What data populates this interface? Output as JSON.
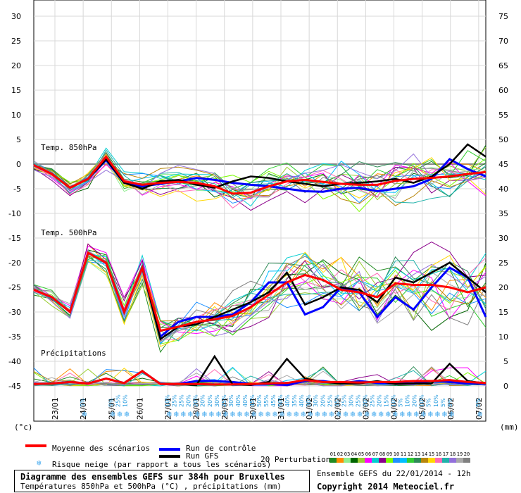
{
  "title": {
    "line1": "Diagramme des ensembles GEFS sur 384h pour Bruxelles",
    "line2": "Températures 850hPa et 500hPa (°C) , précipitations (mm)"
  },
  "run_info": "Ensemble GEFS du 22/01/2014 - 12h",
  "copyright": "Copyright 2014 Meteociel.fr",
  "units_left": "(°c)",
  "units_right": "(mm)",
  "legend": {
    "mean": "Moyenne des scénarios",
    "control": "Run de contrôle",
    "gfs": "Run GFS",
    "snow": "Risque neige (par rapport a tous les scénarios)",
    "perturbations": "20 Perturbations",
    "pert_numbers": [
      "01",
      "02",
      "03",
      "04",
      "05",
      "06",
      "07",
      "08",
      "09",
      "10",
      "11",
      "12",
      "13",
      "14",
      "15",
      "16",
      "17",
      "18",
      "19",
      "20"
    ],
    "pert_colors": [
      "#228b22",
      "#ff8c00",
      "#90ee90",
      "#006400",
      "#9acd32",
      "#ff00ff",
      "#00ced1",
      "#8b008b",
      "#7cfc00",
      "#1e90ff",
      "#00bfff",
      "#32cd32",
      "#2e8b57",
      "#b8860b",
      "#ffd700",
      "#ff69b4",
      "#20b2aa",
      "#9370db",
      "#a9a9a9",
      "#808080"
    ]
  },
  "colors": {
    "mean": "#ff0000",
    "control": "#0000ff",
    "gfs": "#000000",
    "snow": "#44aaee"
  },
  "chart_data": {
    "type": "line",
    "x_dates": [
      "23/01",
      "24/01",
      "25/01",
      "26/01",
      "27/01",
      "28/01",
      "29/01",
      "30/01",
      "31/01",
      "01/02",
      "02/02",
      "03/02",
      "04/02",
      "05/02",
      "06/02",
      "07/02"
    ],
    "left_axis_ticks": [
      30,
      25,
      20,
      15,
      10,
      5,
      0,
      -5,
      -10,
      -15,
      -20,
      -25,
      -30,
      -35,
      -40,
      -45
    ],
    "right_axis_ticks": [
      75,
      70,
      65,
      60,
      55,
      50,
      45,
      40,
      35,
      30,
      25,
      20,
      15,
      10,
      5,
      0
    ],
    "left_axis_range": [
      -45,
      30
    ],
    "right_axis_range": [
      0,
      75
    ],
    "sections": [
      {
        "label": "Temp. 850hPa",
        "mean": [
          -0.2,
          -2,
          -4.8,
          -3,
          1.5,
          -3.5,
          -4.2,
          -3.8,
          -3.6,
          -3.8,
          -4.5,
          -6,
          -5.8,
          -4.5,
          -3.5,
          -3.2,
          -3.6,
          -4,
          -4.2,
          -4.2,
          -3.4,
          -3,
          -2.8,
          -2.5,
          -2,
          -1.6
        ],
        "control": [
          -0.2,
          -2,
          -4.8,
          -3,
          0.8,
          -3.8,
          -4.5,
          -4,
          -3.5,
          -2.8,
          -3.2,
          -3.8,
          -4.2,
          -4.5,
          -5,
          -5.5,
          -5.6,
          -5,
          -4.8,
          -5.5,
          -5,
          -4.5,
          -3,
          1,
          -1,
          -2.5
        ],
        "gfs": [
          -0.2,
          -2,
          -4.8,
          -3,
          1,
          -3.8,
          -5,
          -3.5,
          -3.2,
          -4.2,
          -4.8,
          -3.5,
          -2.5,
          -2.8,
          -3.5,
          -4,
          -4.5,
          -4,
          -3.8,
          -3.5,
          -3,
          -3.8,
          -2.5,
          0,
          4,
          1.5
        ]
      },
      {
        "label": "Temp. 500hPa",
        "mean": [
          -25.5,
          -27,
          -30,
          -18,
          -20,
          -30,
          -21,
          -33.8,
          -33,
          -32,
          -31.5,
          -30.8,
          -29,
          -26.5,
          -24,
          -22.5,
          -23.5,
          -25.5,
          -26,
          -27,
          -24.2,
          -24.5,
          -24.5,
          -25,
          -26,
          -25
        ],
        "control": [
          -25.5,
          -27,
          -30,
          -18,
          -20,
          -30,
          -21,
          -35,
          -32,
          -31,
          -31,
          -30.5,
          -28,
          -24,
          -24,
          -30.5,
          -29,
          -25,
          -26,
          -31,
          -27,
          -29.5,
          -25,
          -21,
          -23,
          -31
        ],
        "gfs": [
          -25.5,
          -27,
          -30,
          -18,
          -20,
          -30,
          -21,
          -35.5,
          -33,
          -32.5,
          -31,
          -29.5,
          -28,
          -26,
          -22,
          -28.5,
          -27,
          -25,
          -25.5,
          -28,
          -23,
          -24,
          -22,
          -20,
          -23,
          -26
        ]
      },
      {
        "label": "Précipitations",
        "mean": [
          0.4,
          0.5,
          0.8,
          0.5,
          1.5,
          0.6,
          3,
          0.4,
          0.4,
          0.4,
          0.3,
          0.3,
          0.4,
          0.5,
          0.6,
          1.2,
          0.8,
          0.8,
          0.7,
          0.8,
          0.8,
          1,
          1,
          1.2,
          0.8,
          0.6
        ],
        "control": [
          0.4,
          0.5,
          0.8,
          0.5,
          1.5,
          0.6,
          3,
          0.4,
          0.4,
          1,
          1,
          0.8,
          0.4,
          0.4,
          0.2,
          1,
          1,
          0.5,
          1,
          0.6,
          0.5,
          0.5,
          1,
          0.8,
          0.5,
          0.5
        ],
        "gfs": [
          0.4,
          0.5,
          0.8,
          0.5,
          1.5,
          0.6,
          3,
          0.4,
          0.4,
          0.2,
          6,
          0.3,
          0.2,
          0.8,
          5.5,
          1.5,
          0.8,
          0.5,
          0.5,
          1,
          0.4,
          0.5,
          0.5,
          4.5,
          1,
          0.5
        ]
      }
    ],
    "snow_risk": [
      {
        "date_index": 1.5,
        "pct": "5%"
      },
      {
        "date_index": 2.5,
        "pct": "5%"
      },
      {
        "date_index": 2.75,
        "pct": "25%"
      },
      {
        "date_index": 3.0,
        "pct": "10%"
      },
      {
        "date_index": 4.5,
        "pct": "10%"
      },
      {
        "date_index": 4.75,
        "pct": "25%"
      },
      {
        "date_index": 5.0,
        "pct": "25%"
      },
      {
        "date_index": 5.25,
        "pct": "20%"
      },
      {
        "date_index": 5.5,
        "pct": "20%"
      },
      {
        "date_index": 5.75,
        "pct": "20%"
      },
      {
        "date_index": 6.0,
        "pct": "20%"
      },
      {
        "date_index": 6.25,
        "pct": "30%"
      },
      {
        "date_index": 6.5,
        "pct": "25%"
      },
      {
        "date_index": 6.75,
        "pct": "30%"
      },
      {
        "date_index": 7.0,
        "pct": "40%"
      },
      {
        "date_index": 7.25,
        "pct": "40%"
      },
      {
        "date_index": 7.5,
        "pct": "45%"
      },
      {
        "date_index": 7.75,
        "pct": "50%"
      },
      {
        "date_index": 8.0,
        "pct": "55%"
      },
      {
        "date_index": 8.25,
        "pct": "45%"
      },
      {
        "date_index": 8.5,
        "pct": "50%"
      },
      {
        "date_index": 8.75,
        "pct": "40%"
      },
      {
        "date_index": 9.0,
        "pct": "35%"
      },
      {
        "date_index": 9.25,
        "pct": "40%"
      },
      {
        "date_index": 9.5,
        "pct": "30%"
      },
      {
        "date_index": 9.75,
        "pct": "30%"
      },
      {
        "date_index": 10.0,
        "pct": "20%"
      },
      {
        "date_index": 10.25,
        "pct": "25%"
      },
      {
        "date_index": 10.5,
        "pct": "35%"
      },
      {
        "date_index": 10.75,
        "pct": "25%"
      },
      {
        "date_index": 11.0,
        "pct": "30%"
      },
      {
        "date_index": 11.25,
        "pct": "25%"
      },
      {
        "date_index": 11.5,
        "pct": "20%"
      },
      {
        "date_index": 11.75,
        "pct": "25%"
      },
      {
        "date_index": 12.0,
        "pct": "20%"
      },
      {
        "date_index": 12.25,
        "pct": "15%"
      },
      {
        "date_index": 12.5,
        "pct": "10%"
      },
      {
        "date_index": 12.75,
        "pct": "5%"
      },
      {
        "date_index": 13.0,
        "pct": "10%"
      },
      {
        "date_index": 13.25,
        "pct": "20%"
      },
      {
        "date_index": 13.5,
        "pct": "10%"
      },
      {
        "date_index": 13.75,
        "pct": "5%"
      },
      {
        "date_index": 14.0,
        "pct": "10%"
      },
      {
        "date_index": 14.25,
        "pct": "5%"
      },
      {
        "date_index": 14.5,
        "pct": "5%"
      },
      {
        "date_index": 15.5,
        "pct": "5%"
      }
    ]
  }
}
